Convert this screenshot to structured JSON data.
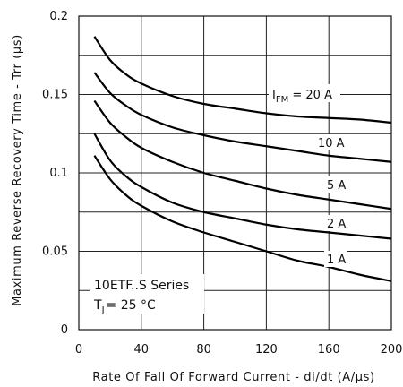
{
  "chart_data": {
    "type": "line",
    "xlabel": "Rate Of Fall Of Forward Current - di/dt (A/µs)",
    "ylabel": "Maximum Reverse Recovery Time - Trr (µs)",
    "xlim": [
      0,
      200
    ],
    "ylim": [
      0,
      0.2
    ],
    "x_ticks": [
      "0",
      "40",
      "80",
      "120",
      "160",
      "200"
    ],
    "y_ticks": [
      "0",
      "0.05",
      "0.1",
      "0.15",
      "0.2"
    ],
    "grid": true,
    "series": [
      {
        "name": "IFM = 20 A",
        "x": [
          10,
          20,
          30,
          40,
          60,
          80,
          100,
          120,
          140,
          160,
          180,
          200
        ],
        "y": [
          0.187,
          0.172,
          0.163,
          0.157,
          0.149,
          0.144,
          0.141,
          0.138,
          0.136,
          0.135,
          0.134,
          0.132
        ]
      },
      {
        "name": "10 A",
        "x": [
          10,
          20,
          30,
          40,
          60,
          80,
          100,
          120,
          140,
          160,
          180,
          200
        ],
        "y": [
          0.164,
          0.151,
          0.143,
          0.137,
          0.129,
          0.124,
          0.12,
          0.117,
          0.114,
          0.111,
          0.109,
          0.107
        ]
      },
      {
        "name": "5 A",
        "x": [
          10,
          20,
          30,
          40,
          60,
          80,
          100,
          120,
          140,
          160,
          180,
          200
        ],
        "y": [
          0.146,
          0.132,
          0.123,
          0.116,
          0.107,
          0.1,
          0.095,
          0.09,
          0.086,
          0.083,
          0.08,
          0.077
        ]
      },
      {
        "name": "2 A",
        "x": [
          10,
          20,
          30,
          40,
          60,
          80,
          100,
          120,
          140,
          160,
          180,
          200
        ],
        "y": [
          0.125,
          0.108,
          0.098,
          0.091,
          0.081,
          0.075,
          0.071,
          0.067,
          0.064,
          0.062,
          0.06,
          0.058
        ]
      },
      {
        "name": "1 A",
        "x": [
          10,
          20,
          30,
          40,
          60,
          80,
          100,
          120,
          140,
          160,
          180,
          200
        ],
        "y": [
          0.111,
          0.096,
          0.086,
          0.079,
          0.069,
          0.062,
          0.056,
          0.05,
          0.044,
          0.04,
          0.035,
          0.031
        ]
      }
    ],
    "curve_labels": {
      "ifm_prefix": "I",
      "ifm_sub": "FM",
      "ifm_suffix": " = 20 A",
      "l10": "10 A",
      "l5": "5 A",
      "l2": "2 A",
      "l1": "1 A"
    },
    "annotation": {
      "series_name": "10ETF..S Series",
      "tj_prefix": "T",
      "tj_sub": "J",
      "tj_suffix": "= 25 °C"
    }
  }
}
